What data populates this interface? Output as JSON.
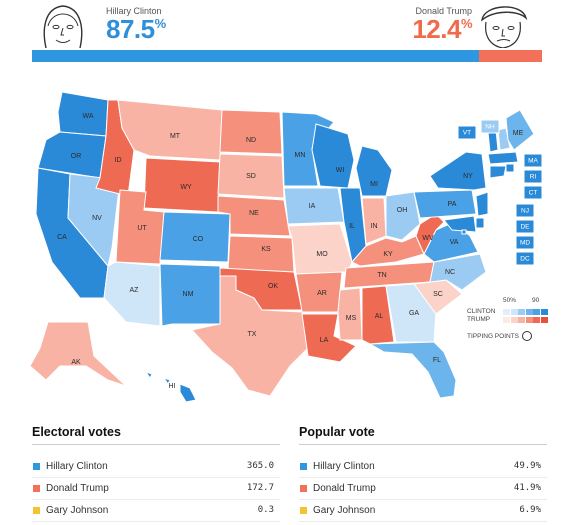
{
  "header": {
    "clinton": {
      "name": "Hillary Clinton",
      "pct": "87.5",
      "pct_value": 87.5,
      "color": "#2f96e0"
    },
    "trump": {
      "name": "Donald Trump",
      "pct": "12.4",
      "pct_value": 12.4,
      "color": "#f2715a"
    },
    "pct_sign": "%"
  },
  "map": {
    "colors": {
      "d5": "#2b8ad8",
      "d4": "#4aa1e5",
      "d3": "#6cb5ec",
      "d2": "#9bcbf2",
      "d1": "#cfe5f8",
      "r1": "#fbd3c8",
      "r2": "#f8b3a4",
      "r3": "#f5907c",
      "r4": "#ef6a53"
    },
    "states": [
      {
        "abbr": "WA",
        "tone": "d5"
      },
      {
        "abbr": "OR",
        "tone": "d5"
      },
      {
        "abbr": "CA",
        "tone": "d5"
      },
      {
        "abbr": "NV",
        "tone": "d2"
      },
      {
        "abbr": "ID",
        "tone": "r4"
      },
      {
        "abbr": "MT",
        "tone": "r2"
      },
      {
        "abbr": "WY",
        "tone": "r4"
      },
      {
        "abbr": "UT",
        "tone": "r3"
      },
      {
        "abbr": "AZ",
        "tone": "d1"
      },
      {
        "abbr": "CO",
        "tone": "d4"
      },
      {
        "abbr": "NM",
        "tone": "d4"
      },
      {
        "abbr": "ND",
        "tone": "r3"
      },
      {
        "abbr": "SD",
        "tone": "r2"
      },
      {
        "abbr": "NE",
        "tone": "r3"
      },
      {
        "abbr": "KS",
        "tone": "r3"
      },
      {
        "abbr": "OK",
        "tone": "r4"
      },
      {
        "abbr": "TX",
        "tone": "r2"
      },
      {
        "abbr": "MN",
        "tone": "d4"
      },
      {
        "abbr": "IA",
        "tone": "d2"
      },
      {
        "abbr": "MO",
        "tone": "r1"
      },
      {
        "abbr": "AR",
        "tone": "r3"
      },
      {
        "abbr": "LA",
        "tone": "r4"
      },
      {
        "abbr": "WI",
        "tone": "d5"
      },
      {
        "abbr": "IL",
        "tone": "d5"
      },
      {
        "abbr": "MI",
        "tone": "d5"
      },
      {
        "abbr": "IN",
        "tone": "r2"
      },
      {
        "abbr": "OH",
        "tone": "d2"
      },
      {
        "abbr": "KY",
        "tone": "r3"
      },
      {
        "abbr": "TN",
        "tone": "r3"
      },
      {
        "abbr": "MS",
        "tone": "r2"
      },
      {
        "abbr": "AL",
        "tone": "r4"
      },
      {
        "abbr": "GA",
        "tone": "d1"
      },
      {
        "abbr": "FL",
        "tone": "d3"
      },
      {
        "abbr": "SC",
        "tone": "r1"
      },
      {
        "abbr": "NC",
        "tone": "d2"
      },
      {
        "abbr": "VA",
        "tone": "d4"
      },
      {
        "abbr": "WV",
        "tone": "r4"
      },
      {
        "abbr": "PA",
        "tone": "d4"
      },
      {
        "abbr": "NY",
        "tone": "d5"
      },
      {
        "abbr": "VT",
        "tone": "d5"
      },
      {
        "abbr": "NH",
        "tone": "d2"
      },
      {
        "abbr": "ME",
        "tone": "d3"
      },
      {
        "abbr": "MA",
        "tone": "d5"
      },
      {
        "abbr": "RI",
        "tone": "d5"
      },
      {
        "abbr": "CT",
        "tone": "d5"
      },
      {
        "abbr": "NJ",
        "tone": "d5"
      },
      {
        "abbr": "DE",
        "tone": "d5"
      },
      {
        "abbr": "MD",
        "tone": "d5"
      },
      {
        "abbr": "DC",
        "tone": "d5"
      },
      {
        "abbr": "AK",
        "tone": "r2"
      },
      {
        "abbr": "HI",
        "tone": "d5"
      }
    ],
    "legend": {
      "tick_low": "50%",
      "tick_high": "90",
      "clinton_label": "CLINTON",
      "trump_label": "TRUMP",
      "tipping_label": "TIPPING POINTS",
      "clinton_ramp": [
        "#e3eefa",
        "#cfe5f8",
        "#9bcbf2",
        "#6cb5ec",
        "#4aa1e5",
        "#2b8ad8"
      ],
      "trump_ramp": [
        "#fdeae4",
        "#fbd3c8",
        "#f8b3a4",
        "#f5907c",
        "#ef6a53",
        "#e8503a"
      ]
    }
  },
  "electoral": {
    "title": "Electoral votes",
    "rows": [
      {
        "name": "Hillary Clinton",
        "value": "365.0",
        "color": "#2f96e0"
      },
      {
        "name": "Donald Trump",
        "value": "172.7",
        "color": "#f2715a"
      },
      {
        "name": "Gary Johnson",
        "value": "0.3",
        "color": "#f4c430"
      }
    ]
  },
  "popular": {
    "title": "Popular vote",
    "rows": [
      {
        "name": "Hillary Clinton",
        "value": "49.9%",
        "color": "#2f96e0"
      },
      {
        "name": "Donald Trump",
        "value": "41.9%",
        "color": "#f2715a"
      },
      {
        "name": "Gary Johnson",
        "value": "6.9%",
        "color": "#f4c430"
      }
    ]
  }
}
